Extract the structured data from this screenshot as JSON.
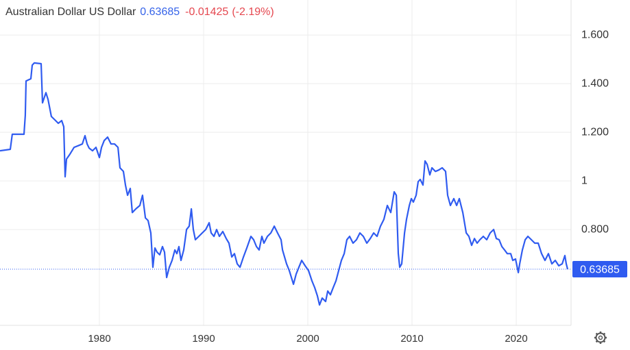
{
  "chart_data": {
    "type": "line",
    "title": "Australian Dollar US Dollar",
    "last_price": 0.63685,
    "change": -0.01425,
    "change_percent": {
      "value": -2.19,
      "label": "(-2.19%)"
    },
    "color": "#2f5bf0",
    "price_color": "#3563e9",
    "change_color": "#e5474f",
    "grid": true,
    "xlim": [
      1970.46,
      2025.26
    ],
    "xticks": [
      1980,
      1990,
      2000,
      2010,
      2020
    ],
    "ylim": [
      0.406,
      1.744
    ],
    "yticks": [
      {
        "value": 1.6,
        "label": "1.600"
      },
      {
        "value": 1.4,
        "label": "1.400"
      },
      {
        "value": 1.2,
        "label": "1.200"
      },
      1,
      {
        "value": 0.8,
        "label": "0.800"
      }
    ],
    "x": [
      1970.46,
      1971.45,
      1971.64,
      1972.76,
      1972.89,
      1972.96,
      1973.42,
      1973.55,
      1973.75,
      1974.41,
      1974.54,
      1974.87,
      1975.07,
      1975.39,
      1975.72,
      1976.05,
      1976.38,
      1976.58,
      1976.71,
      1976.84,
      1977.17,
      1977.57,
      1978.03,
      1978.36,
      1978.62,
      1978.82,
      1979.01,
      1979.34,
      1979.67,
      1980.0,
      1980.2,
      1980.46,
      1980.79,
      1981.12,
      1981.45,
      1981.78,
      1981.97,
      1982.3,
      1982.5,
      1982.7,
      1982.96,
      1983.16,
      1983.49,
      1983.88,
      1984.14,
      1984.41,
      1984.67,
      1984.93,
      1985.13,
      1985.33,
      1985.53,
      1985.79,
      1986.05,
      1986.25,
      1986.45,
      1986.71,
      1986.97,
      1987.24,
      1987.43,
      1987.63,
      1987.83,
      1988.09,
      1988.36,
      1988.62,
      1988.82,
      1989.01,
      1989.21,
      1989.54,
      1989.87,
      1990.2,
      1990.53,
      1990.72,
      1990.99,
      1991.25,
      1991.51,
      1991.84,
      1992.17,
      1992.43,
      1992.7,
      1992.96,
      1993.22,
      1993.49,
      1993.82,
      1994.14,
      1994.54,
      1994.8,
      1995.07,
      1995.33,
      1995.59,
      1995.79,
      1996.12,
      1996.45,
      1996.78,
      1997.1,
      1997.43,
      1997.57,
      1997.96,
      1998.22,
      1998.62,
      1998.88,
      1999.14,
      1999.41,
      1999.74,
      2000.07,
      2000.39,
      2000.66,
      2000.92,
      2001.12,
      2001.38,
      2001.71,
      2001.91,
      2002.17,
      2002.43,
      2002.7,
      2002.96,
      2003.22,
      2003.49,
      2003.75,
      2004.01,
      2004.34,
      2004.67,
      2005.0,
      2005.33,
      2005.66,
      2005.99,
      2006.32,
      2006.64,
      2006.97,
      2007.3,
      2007.63,
      2007.96,
      2008.29,
      2008.49,
      2008.68,
      2008.82,
      2009.01,
      2009.28,
      2009.47,
      2009.74,
      2009.93,
      2010.13,
      2010.39,
      2010.59,
      2010.79,
      2011.05,
      2011.25,
      2011.45,
      2011.71,
      2011.91,
      2012.24,
      2012.57,
      2012.89,
      2013.22,
      2013.42,
      2013.68,
      2014.01,
      2014.28,
      2014.54,
      2014.87,
      2015.2,
      2015.46,
      2015.72,
      2015.99,
      2016.25,
      2016.51,
      2016.84,
      2017.17,
      2017.5,
      2017.83,
      2018.09,
      2018.36,
      2018.62,
      2018.88,
      2019.14,
      2019.47,
      2019.67,
      2019.93,
      2020.2,
      2020.33,
      2020.59,
      2020.86,
      2021.12,
      2021.45,
      2021.78,
      2022.11,
      2022.43,
      2022.76,
      2023.09,
      2023.42,
      2023.75,
      2024.08,
      2024.41,
      2024.67,
      2024.8,
      2024.93
    ],
    "values": [
      1.124,
      1.13,
      1.192,
      1.192,
      1.27,
      1.411,
      1.42,
      1.476,
      1.485,
      1.482,
      1.321,
      1.363,
      1.335,
      1.265,
      1.251,
      1.237,
      1.248,
      1.223,
      1.017,
      1.09,
      1.11,
      1.138,
      1.146,
      1.152,
      1.186,
      1.152,
      1.135,
      1.124,
      1.138,
      1.096,
      1.138,
      1.166,
      1.18,
      1.152,
      1.152,
      1.138,
      1.054,
      1.039,
      0.983,
      0.941,
      0.969,
      0.87,
      0.885,
      0.899,
      0.941,
      0.848,
      0.837,
      0.786,
      0.645,
      0.724,
      0.707,
      0.696,
      0.73,
      0.707,
      0.603,
      0.645,
      0.673,
      0.716,
      0.701,
      0.73,
      0.673,
      0.716,
      0.8,
      0.814,
      0.885,
      0.8,
      0.758,
      0.772,
      0.786,
      0.8,
      0.828,
      0.786,
      0.772,
      0.8,
      0.772,
      0.792,
      0.763,
      0.744,
      0.687,
      0.701,
      0.659,
      0.645,
      0.687,
      0.724,
      0.772,
      0.758,
      0.73,
      0.716,
      0.772,
      0.744,
      0.772,
      0.786,
      0.814,
      0.786,
      0.758,
      0.716,
      0.659,
      0.631,
      0.575,
      0.617,
      0.645,
      0.673,
      0.651,
      0.631,
      0.589,
      0.561,
      0.527,
      0.49,
      0.518,
      0.504,
      0.547,
      0.532,
      0.561,
      0.589,
      0.631,
      0.673,
      0.701,
      0.758,
      0.772,
      0.744,
      0.758,
      0.786,
      0.772,
      0.744,
      0.763,
      0.786,
      0.772,
      0.814,
      0.842,
      0.899,
      0.87,
      0.955,
      0.941,
      0.701,
      0.645,
      0.659,
      0.786,
      0.842,
      0.899,
      0.927,
      0.913,
      0.941,
      0.997,
      1.006,
      0.983,
      1.082,
      1.068,
      1.025,
      1.054,
      1.039,
      1.045,
      1.054,
      1.039,
      0.941,
      0.899,
      0.927,
      0.899,
      0.927,
      0.87,
      0.786,
      0.772,
      0.735,
      0.763,
      0.744,
      0.758,
      0.772,
      0.758,
      0.786,
      0.8,
      0.763,
      0.758,
      0.73,
      0.716,
      0.701,
      0.701,
      0.673,
      0.679,
      0.623,
      0.659,
      0.716,
      0.758,
      0.772,
      0.758,
      0.744,
      0.744,
      0.701,
      0.673,
      0.701,
      0.659,
      0.673,
      0.651,
      0.659,
      0.693,
      0.659,
      0.637
    ]
  }
}
